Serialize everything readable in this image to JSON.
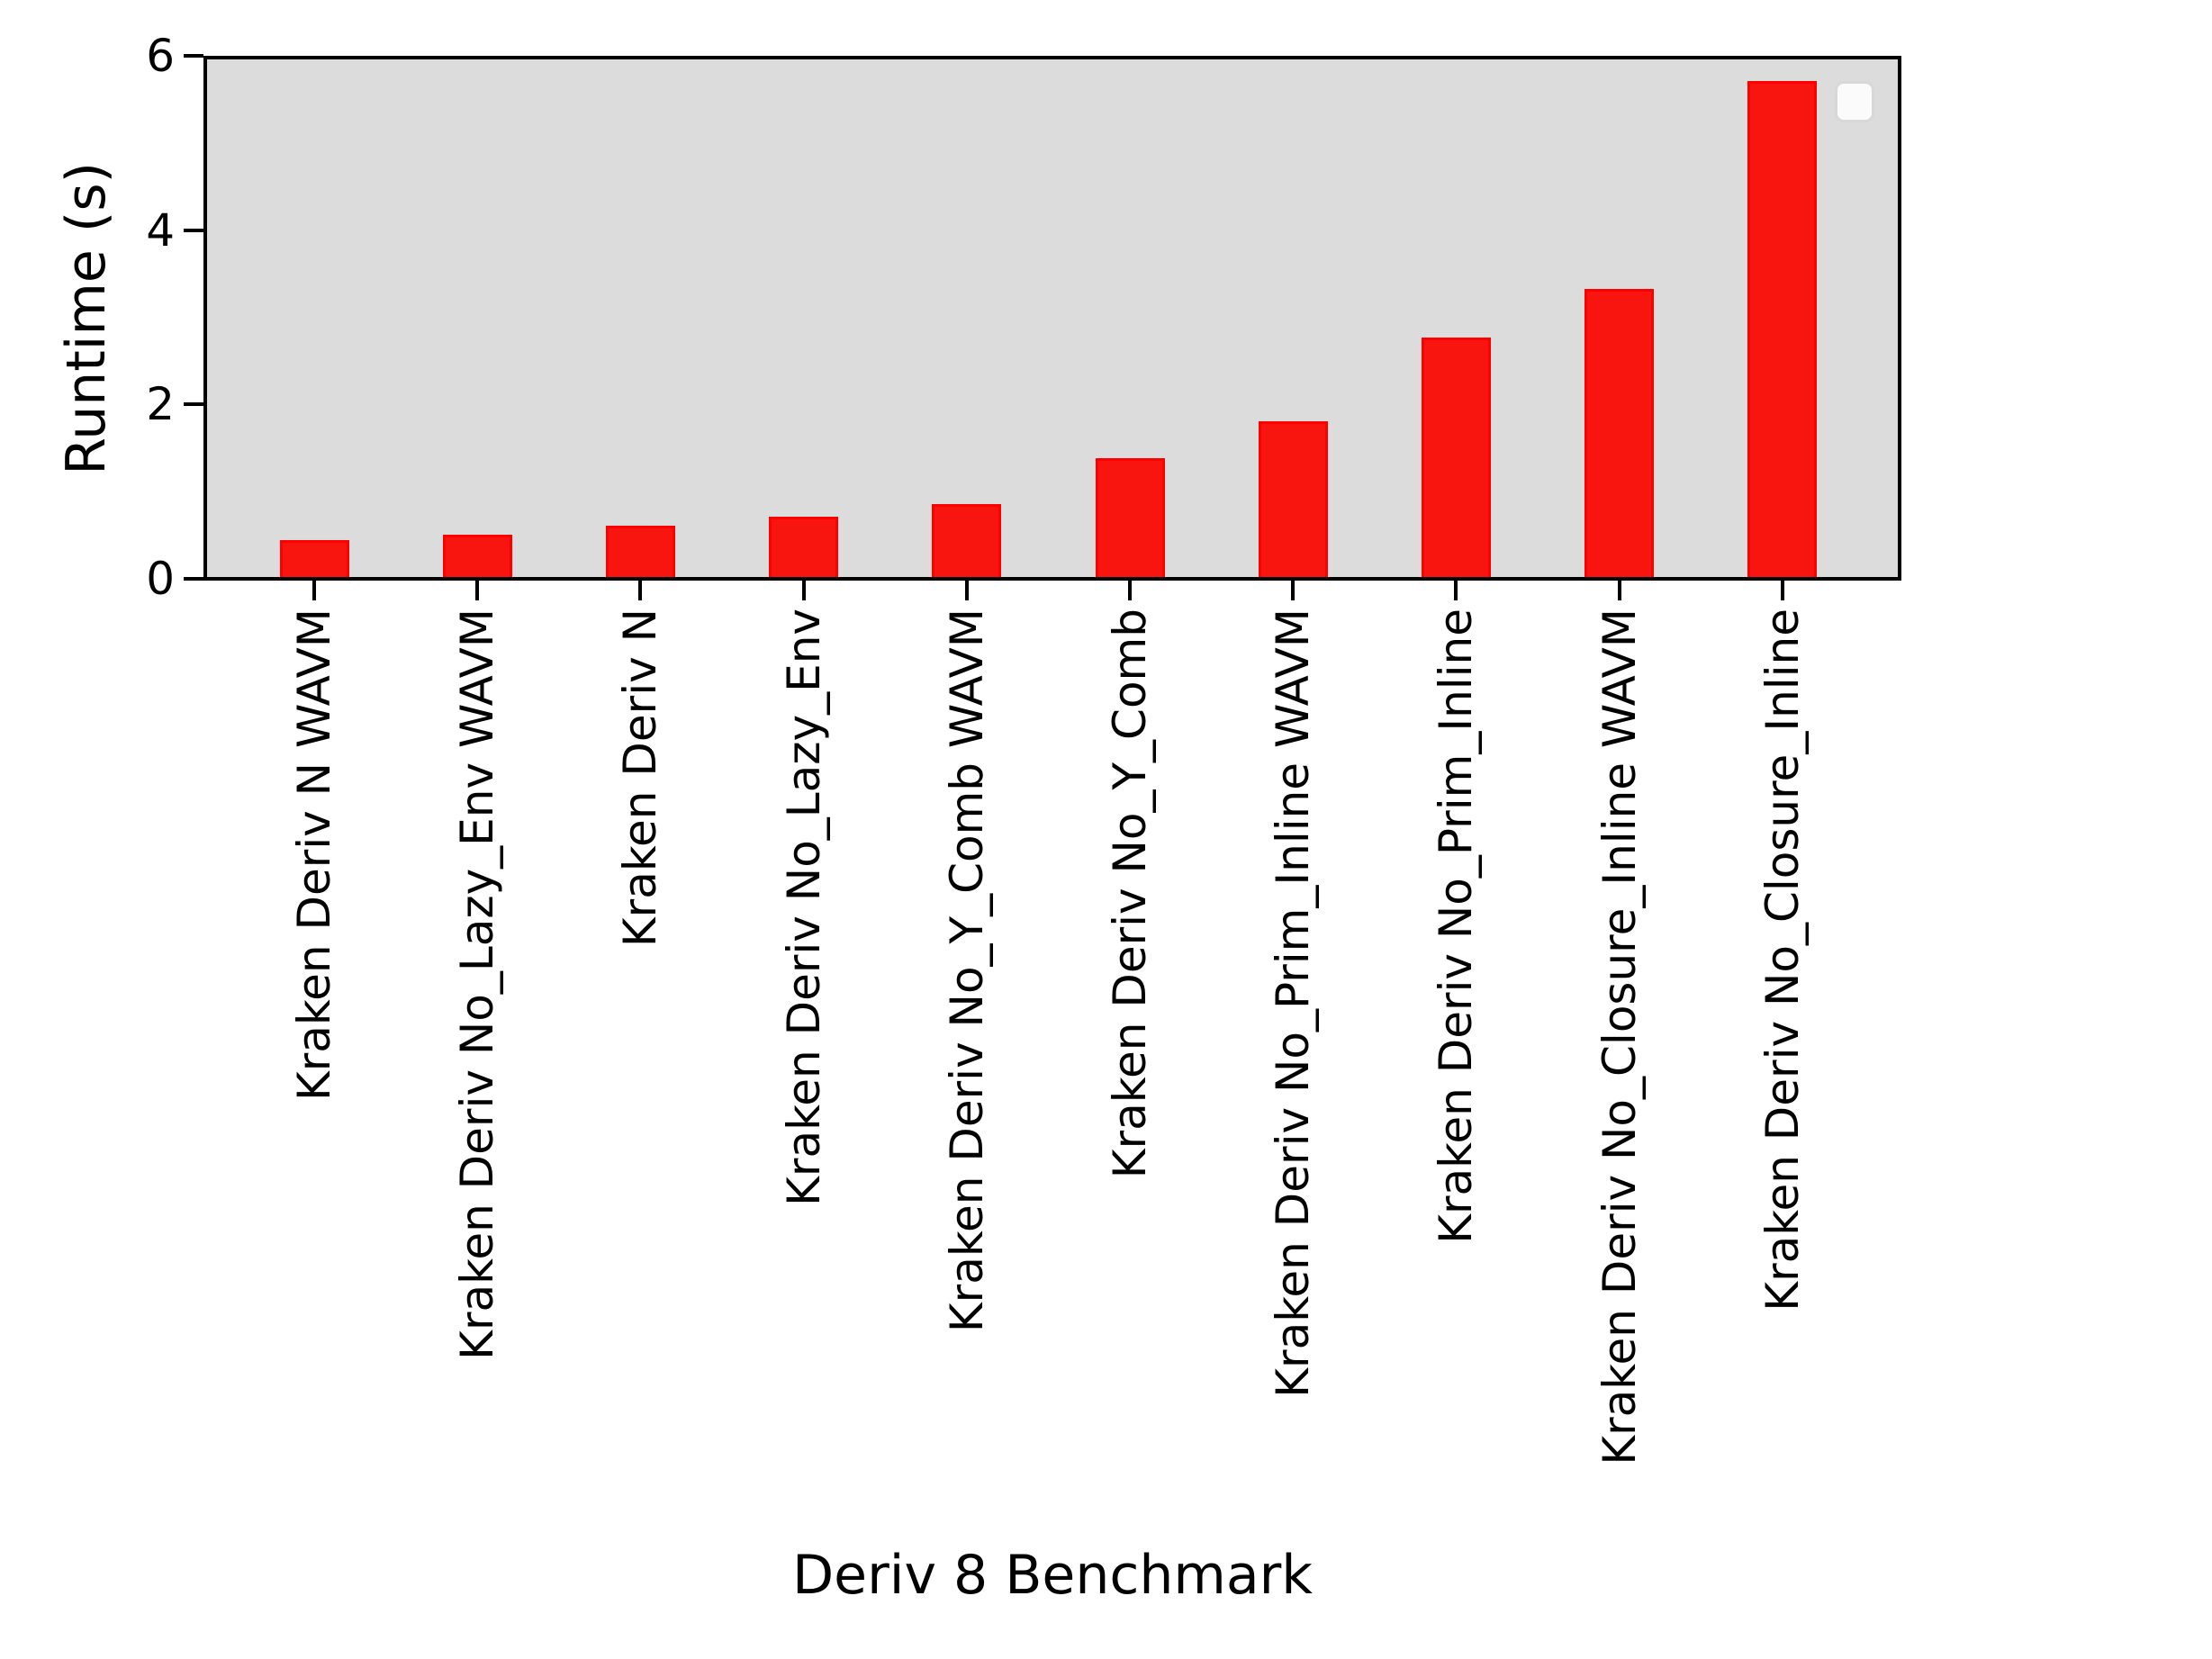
{
  "figure": {
    "background": "#ffffff",
    "plot_background": "#dcdcdc",
    "spine_color": "#000000"
  },
  "chart_data": {
    "type": "bar",
    "title": "",
    "xlabel": "Deriv 8 Benchmark",
    "ylabel": "Runtime (s)",
    "categories": [
      "Kraken Deriv N WAVM",
      "Kraken Deriv No_Lazy_Env WAVM",
      "Kraken Deriv N",
      "Kraken Deriv No_Lazy_Env",
      "Kraken Deriv No_Y_Comb WAVM",
      "Kraken Deriv No_Y_Comb",
      "Kraken Deriv No_Prim_Inline WAVM",
      "Kraken Deriv No_Prim_Inline",
      "Kraken Deriv No_Closure_Inline WAVM",
      "Kraken Deriv No_Closure_Inline"
    ],
    "values": [
      0.43,
      0.49,
      0.6,
      0.7,
      0.85,
      1.38,
      1.8,
      2.78,
      3.34,
      5.75
    ],
    "ylim": [
      0,
      6
    ],
    "yticks": [
      "0",
      "2",
      "4",
      "6"
    ],
    "grid": false,
    "bar_color": "#f8150f",
    "bar_edge_color": "#ff0000",
    "legend": {
      "visible": true,
      "entries": [],
      "position": "upper right"
    }
  }
}
